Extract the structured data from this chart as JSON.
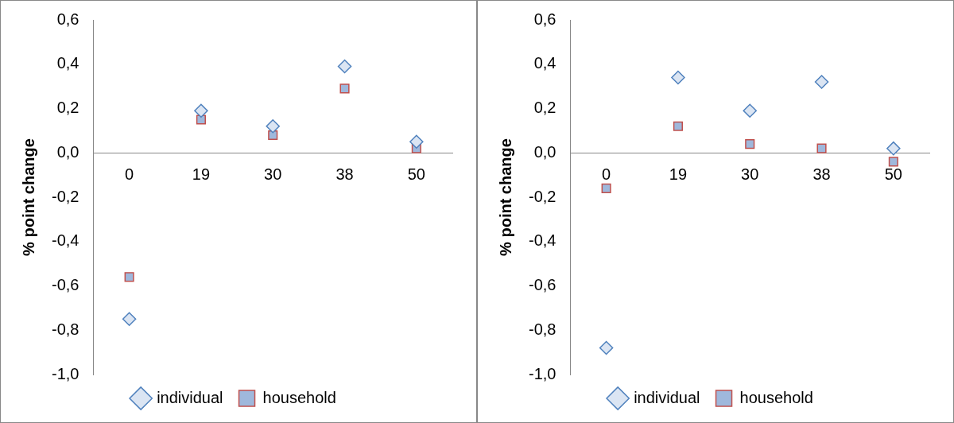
{
  "chart_data": [
    {
      "type": "scatter",
      "ylabel": "% point change",
      "categories": [
        "0",
        "19",
        "30",
        "38",
        "50"
      ],
      "ylim": [
        -1.0,
        0.6
      ],
      "yticks": [
        {
          "value": -1.0,
          "label": "-1,0"
        },
        {
          "value": -0.8,
          "label": "-0,8"
        },
        {
          "value": -0.6,
          "label": "-0,6"
        },
        {
          "value": -0.4,
          "label": "-0,4"
        },
        {
          "value": -0.2,
          "label": "-0,2"
        },
        {
          "value": 0,
          "label": "0,0"
        },
        {
          "value": 0.2,
          "label": "0,2"
        },
        {
          "value": 0.4,
          "label": "0,4"
        },
        {
          "value": 0.6,
          "label": "0,6"
        }
      ],
      "grid": false,
      "legend": "bottom",
      "series": [
        {
          "name": "individual",
          "color": "#4f81bd",
          "marker": "diamond",
          "values": [
            -0.75,
            0.19,
            0.12,
            0.39,
            0.05
          ]
        },
        {
          "name": "household",
          "color": "#c0504d",
          "marker": "square",
          "values": [
            -0.56,
            0.15,
            0.08,
            0.29,
            0.02
          ]
        }
      ]
    },
    {
      "type": "scatter",
      "ylabel": "% point change",
      "categories": [
        "0",
        "19",
        "30",
        "38",
        "50"
      ],
      "ylim": [
        -1.0,
        0.6
      ],
      "yticks": [
        {
          "value": -1.0,
          "label": "-1,0"
        },
        {
          "value": -0.8,
          "label": "-0,8"
        },
        {
          "value": -0.6,
          "label": "-0,6"
        },
        {
          "value": -0.4,
          "label": "-0,4"
        },
        {
          "value": -0.2,
          "label": "-0,2"
        },
        {
          "value": 0,
          "label": "0,0"
        },
        {
          "value": 0.2,
          "label": "0,2"
        },
        {
          "value": 0.4,
          "label": "0,4"
        },
        {
          "value": 0.6,
          "label": "0,6"
        }
      ],
      "grid": false,
      "legend": "bottom",
      "series": [
        {
          "name": "individual",
          "color": "#4f81bd",
          "marker": "diamond",
          "values": [
            -0.88,
            0.34,
            0.19,
            0.32,
            0.02
          ]
        },
        {
          "name": "household",
          "color": "#c0504d",
          "marker": "square",
          "values": [
            -0.16,
            0.12,
            0.04,
            0.02,
            -0.04
          ]
        }
      ]
    }
  ]
}
